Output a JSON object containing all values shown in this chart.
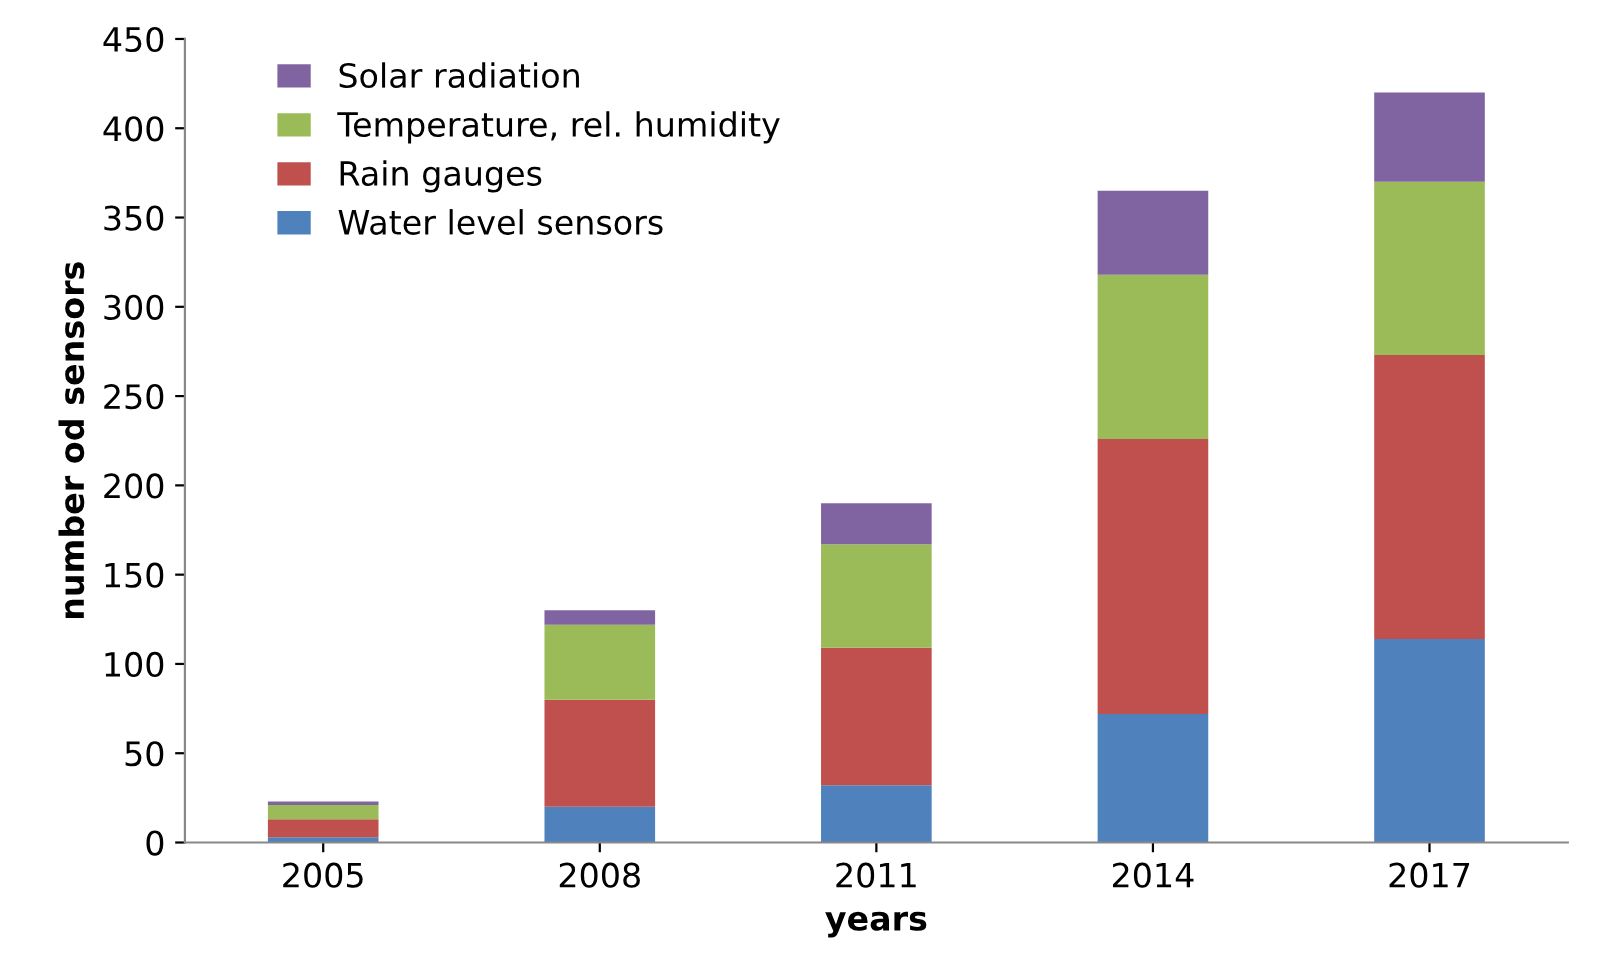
{
  "chart_data": {
    "type": "bar",
    "stacked": true,
    "xlabel": "years",
    "ylabel": "number od sensors",
    "categories": [
      "2005",
      "2008",
      "2011",
      "2014",
      "2017"
    ],
    "series": [
      {
        "name": "Water level sensors",
        "color": "#4f81bd",
        "values": [
          3,
          20,
          32,
          72,
          114
        ]
      },
      {
        "name": "Rain gauges",
        "color": "#c0504d",
        "values": [
          10,
          60,
          77,
          154,
          159
        ]
      },
      {
        "name": "Temperature, rel. humidity",
        "color": "#9bbb59",
        "values": [
          8,
          42,
          58,
          92,
          97
        ]
      },
      {
        "name": "Solar radiation",
        "color": "#8064a2",
        "values": [
          2,
          8,
          23,
          47,
          50
        ]
      }
    ],
    "ylim": [
      0,
      450
    ],
    "yticks": [
      0,
      50,
      100,
      150,
      200,
      250,
      300,
      350,
      400,
      450
    ],
    "grid": false,
    "legend": "top left"
  }
}
